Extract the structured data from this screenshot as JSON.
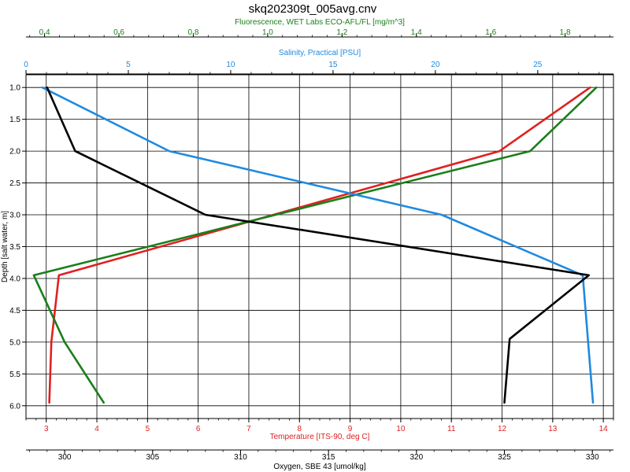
{
  "window": {
    "title": "skq202309t_005avg.cnv"
  },
  "chart_data": {
    "type": "line",
    "title": "skq202309t_005avg.cnv",
    "y_axis": {
      "label": "Depth [salt water, m]",
      "range": [
        0.8,
        6.2
      ],
      "inverted": true,
      "ticks": [
        "1.0",
        "1.5",
        "2.0",
        "2.5",
        "3.0",
        "3.5",
        "4.0",
        "4.5",
        "5.0",
        "5.5",
        "6.0"
      ]
    },
    "x_axes": [
      {
        "id": "fluorescence",
        "position": "top-outer",
        "label": "Fluorescence, WET Labs ECO-AFL/FL [mg/m^3]",
        "color": "#1a7f1a",
        "range": [
          0.35,
          1.93
        ],
        "ticks": [
          "0.4",
          "0.6",
          "0.8",
          "1.0",
          "1.2",
          "1.4",
          "1.6",
          "1.8"
        ]
      },
      {
        "id": "salinity",
        "position": "top-inner",
        "label": "Salinity, Practical [PSU]",
        "color": "#1f8ae0",
        "range": [
          0,
          28.7
        ],
        "ticks": [
          "0",
          "5",
          "10",
          "15",
          "20",
          "25"
        ]
      },
      {
        "id": "temperature",
        "position": "bottom-inner",
        "label": "Temperature [ITS-90, deg C]",
        "color": "#e02020",
        "range": [
          2.6,
          14.2
        ],
        "ticks": [
          "3",
          "4",
          "5",
          "6",
          "7",
          "8",
          "9",
          "10",
          "11",
          "12",
          "13",
          "14"
        ]
      },
      {
        "id": "oxygen",
        "position": "bottom-outer",
        "label": "Oxygen, SBE 43 [umol/kg]",
        "color": "#000000",
        "range": [
          297.8,
          331.2
        ],
        "ticks": [
          "300",
          "305",
          "310",
          "315",
          "320",
          "325",
          "330"
        ]
      }
    ],
    "series": [
      {
        "name": "Temperature [ITS-90, deg C]",
        "axis": "temperature",
        "color": "#e02020",
        "points": [
          [
            13.74,
            1.0
          ],
          [
            11.95,
            2.0
          ],
          [
            3.25,
            3.95
          ],
          [
            3.1,
            5.0
          ],
          [
            3.06,
            5.95
          ]
        ]
      },
      {
        "name": "Fluorescence, WET Labs ECO-AFL/FL [mg/m^3]",
        "axis": "fluorescence",
        "color": "#1a7f1a",
        "points": [
          [
            1.884,
            1.0
          ],
          [
            1.706,
            2.0
          ],
          [
            0.371,
            3.95
          ],
          [
            0.454,
            5.0
          ],
          [
            0.559,
            5.95
          ]
        ]
      },
      {
        "name": "Salinity, Practical [PSU]",
        "axis": "salinity",
        "color": "#1f8ae0",
        "points": [
          [
            0.8,
            1.0
          ],
          [
            7.0,
            2.0
          ],
          [
            20.3,
            3.0
          ],
          [
            27.2,
            3.95
          ],
          [
            27.7,
            5.95
          ]
        ]
      },
      {
        "name": "Oxygen, SBE 43 [umol/kg]",
        "axis": "oxygen",
        "color": "#000000",
        "points": [
          [
            299.0,
            1.0
          ],
          [
            300.6,
            2.0
          ],
          [
            308.0,
            3.0
          ],
          [
            329.8,
            3.95
          ],
          [
            325.3,
            4.95
          ],
          [
            325.0,
            5.95
          ]
        ]
      }
    ],
    "grid": true
  }
}
